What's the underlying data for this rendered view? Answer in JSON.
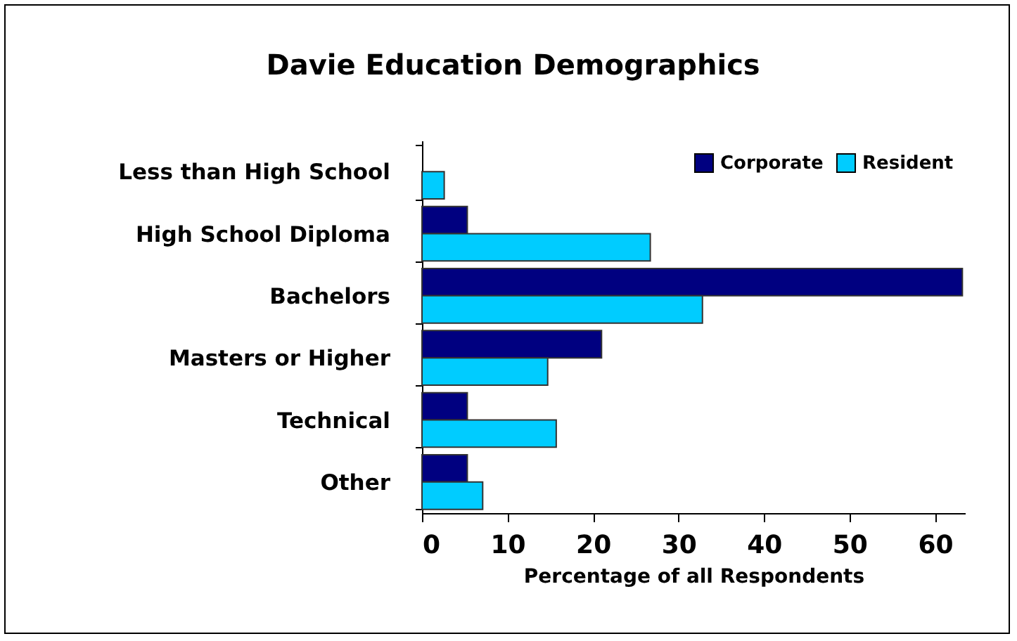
{
  "chart_data": {
    "type": "bar",
    "orientation": "horizontal",
    "title": "Davie Education Demographics",
    "xlabel": "Percentage of all Respondents",
    "categories": [
      "Less than High School",
      "High School Diploma",
      "Bachelors",
      "Masters or Higher",
      "Technical",
      "Other"
    ],
    "series": [
      {
        "name": "Corporate",
        "color": "#000080",
        "values": [
          null,
          5.3,
          63.2,
          21.0,
          5.3,
          5.3
        ]
      },
      {
        "name": "Resident",
        "color": "#00ccff",
        "values": [
          2.6,
          26.7,
          32.8,
          14.7,
          15.7,
          7.1
        ]
      }
    ],
    "xlim": [
      0,
      63.5
    ],
    "xticks": [
      0,
      10,
      20,
      30,
      40,
      50,
      60
    ],
    "grid": false,
    "legend": "top right"
  }
}
